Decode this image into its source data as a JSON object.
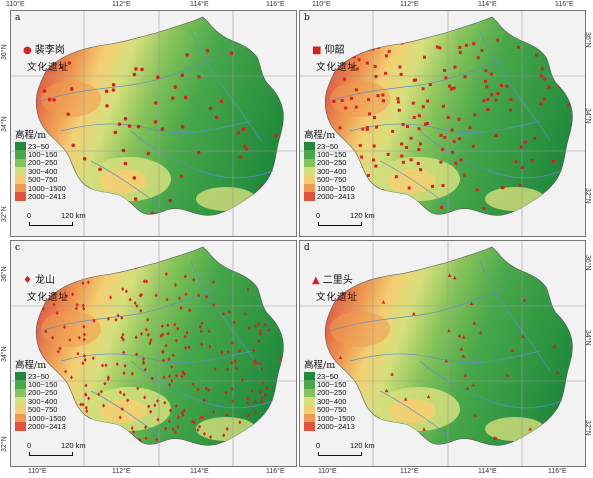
{
  "axes": {
    "lon_labels": [
      "110°E",
      "112°E",
      "114°E",
      "116°E"
    ],
    "lat_labels": [
      "36°N",
      "34°N",
      "32°N"
    ]
  },
  "legend": {
    "title": "高程/m",
    "classes": [
      {
        "label": "23~50",
        "color": "#1f8a3c"
      },
      {
        "label": "100~150",
        "color": "#48a84a"
      },
      {
        "label": "200~250",
        "color": "#86c35a"
      },
      {
        "label": "300~400",
        "color": "#d6df7c"
      },
      {
        "label": "500~750",
        "color": "#f3cf72"
      },
      {
        "label": "1000~1500",
        "color": "#ee9a52"
      },
      {
        "label": "2000~2413",
        "color": "#e0533f"
      }
    ]
  },
  "scale_bar": {
    "zero": "0",
    "distance": "120 km"
  },
  "panels": [
    {
      "letter": "a",
      "site": "裴李岗",
      "culture": "文化遗址",
      "symbol": "circle"
    },
    {
      "letter": "b",
      "site": "仰韶",
      "culture": "文化遗址",
      "symbol": "square"
    },
    {
      "letter": "c",
      "site": "龙山",
      "culture": "文化遗址",
      "symbol": "diamond"
    },
    {
      "letter": "d",
      "site": "二里头",
      "culture": "文化遗址",
      "symbol": "triangle"
    }
  ],
  "colors": {
    "site": "#d8201f",
    "river": "#5b8fc9",
    "grid": "#9a9a9a",
    "land_low": "#4aa84b"
  }
}
